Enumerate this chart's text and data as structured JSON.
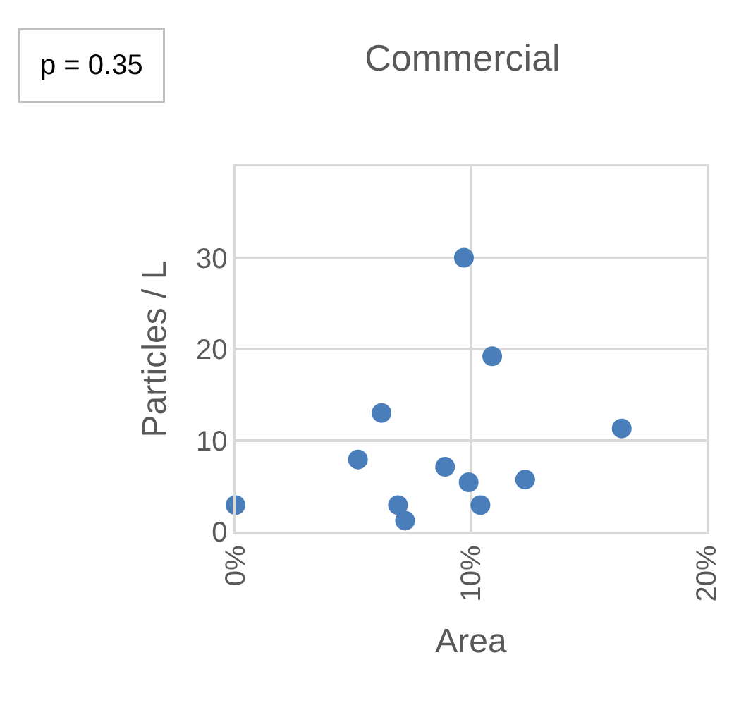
{
  "chart_data": {
    "type": "scatter",
    "title": "Commercial",
    "xlabel": "Area",
    "ylabel": "Particles / L",
    "annotations": [
      "p = 0.35"
    ],
    "x": [
      0,
      0.052,
      0.062,
      0.069,
      0.072,
      0.089,
      0.097,
      0.099,
      0.104,
      0.109,
      0.123,
      0.164
    ],
    "series": [
      {
        "color": "#4a7ebb",
        "values": [
          2.9,
          7.9,
          13,
          2.9,
          1.2,
          7.1,
          30,
          5.4,
          2.9,
          19.2,
          5.7,
          11.3
        ]
      }
    ],
    "xlim": [
      0,
      0.2
    ],
    "xticks": [
      {
        "value": 0,
        "label": "0%"
      },
      {
        "value": 0.1,
        "label": "10%"
      },
      {
        "value": 0.2,
        "label": "20%"
      }
    ],
    "ylim": [
      0,
      40
    ],
    "yticks": [
      0,
      10,
      20,
      30
    ],
    "grid": true,
    "marker": "circle",
    "legend": false
  }
}
